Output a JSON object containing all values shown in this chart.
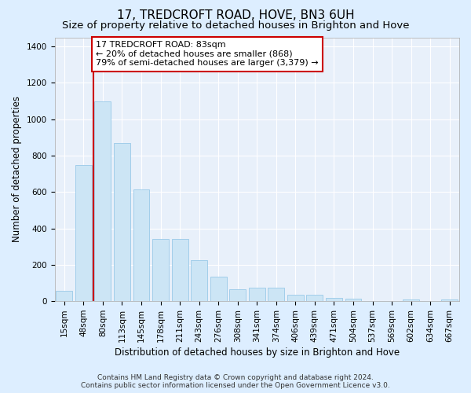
{
  "title": "17, TREDCROFT ROAD, HOVE, BN3 6UH",
  "subtitle": "Size of property relative to detached houses in Brighton and Hove",
  "xlabel": "Distribution of detached houses by size in Brighton and Hove",
  "ylabel": "Number of detached properties",
  "footer_line1": "Contains HM Land Registry data © Crown copyright and database right 2024.",
  "footer_line2": "Contains public sector information licensed under the Open Government Licence v3.0.",
  "bar_labels": [
    "15sqm",
    "48sqm",
    "80sqm",
    "113sqm",
    "145sqm",
    "178sqm",
    "211sqm",
    "243sqm",
    "276sqm",
    "308sqm",
    "341sqm",
    "374sqm",
    "406sqm",
    "439sqm",
    "471sqm",
    "504sqm",
    "537sqm",
    "569sqm",
    "602sqm",
    "634sqm",
    "667sqm"
  ],
  "bar_values": [
    55,
    750,
    1100,
    870,
    615,
    340,
    340,
    225,
    135,
    65,
    75,
    75,
    35,
    35,
    20,
    13,
    2,
    0,
    10,
    0,
    10
  ],
  "bar_color": "#cce5f5",
  "bar_edge_color": "#99c9e8",
  "vline_x_idx": 1.5,
  "vline_color": "#cc0000",
  "annotation_text": "17 TREDCROFT ROAD: 83sqm\n← 20% of detached houses are smaller (868)\n79% of semi-detached houses are larger (3,379) →",
  "annotation_box_facecolor": "#ffffff",
  "annotation_box_edgecolor": "#cc0000",
  "ylim": [
    0,
    1450
  ],
  "yticks": [
    0,
    200,
    400,
    600,
    800,
    1000,
    1200,
    1400
  ],
  "bg_color": "#ddeeff",
  "plot_bg_color": "#e8f0fa",
  "grid_color": "#ffffff",
  "title_fontsize": 11,
  "subtitle_fontsize": 9.5,
  "axis_label_fontsize": 8.5,
  "tick_fontsize": 7.5,
  "annotation_fontsize": 8,
  "footer_fontsize": 6.5
}
